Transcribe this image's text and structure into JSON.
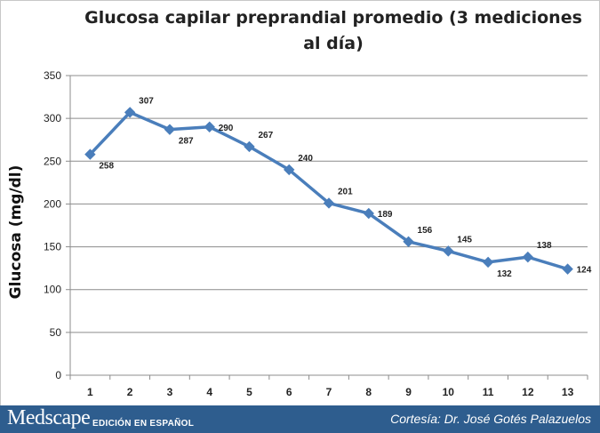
{
  "chart_data": {
    "type": "line",
    "title": "Glucosa capilar preprandial promedio (3 mediciones al día)",
    "ylabel": "Glucosa (mg/dl)",
    "xlabel": "",
    "categories": [
      "1",
      "2",
      "3",
      "4",
      "5",
      "6",
      "7",
      "8",
      "9",
      "10",
      "11",
      "12",
      "13"
    ],
    "series": [
      {
        "values": [
          258,
          307,
          287,
          290,
          267,
          240,
          201,
          189,
          156,
          145,
          132,
          138,
          124
        ]
      }
    ],
    "data_labels": [
      "258",
      "307",
      "287",
      "290",
      "267",
      "240",
      "201",
      "189",
      "156",
      "145",
      "132",
      "138",
      "124"
    ],
    "ylim": [
      0,
      350
    ],
    "yticks": [
      0,
      50,
      100,
      150,
      200,
      250,
      300,
      350
    ],
    "ytick_labels": [
      "0",
      "50",
      "100",
      "150",
      "200",
      "250",
      "300",
      "350"
    ],
    "grid": true,
    "legend": "none",
    "line_color": "#4a7ebb",
    "grid_color": "#8c8c8c"
  },
  "footer": {
    "brand": "Medscape",
    "brand_sub": "EDICIÓN EN ESPAÑOL",
    "credit": "Cortesía: Dr. José Gotés Palazuelos",
    "background": "#2e5d8e"
  }
}
